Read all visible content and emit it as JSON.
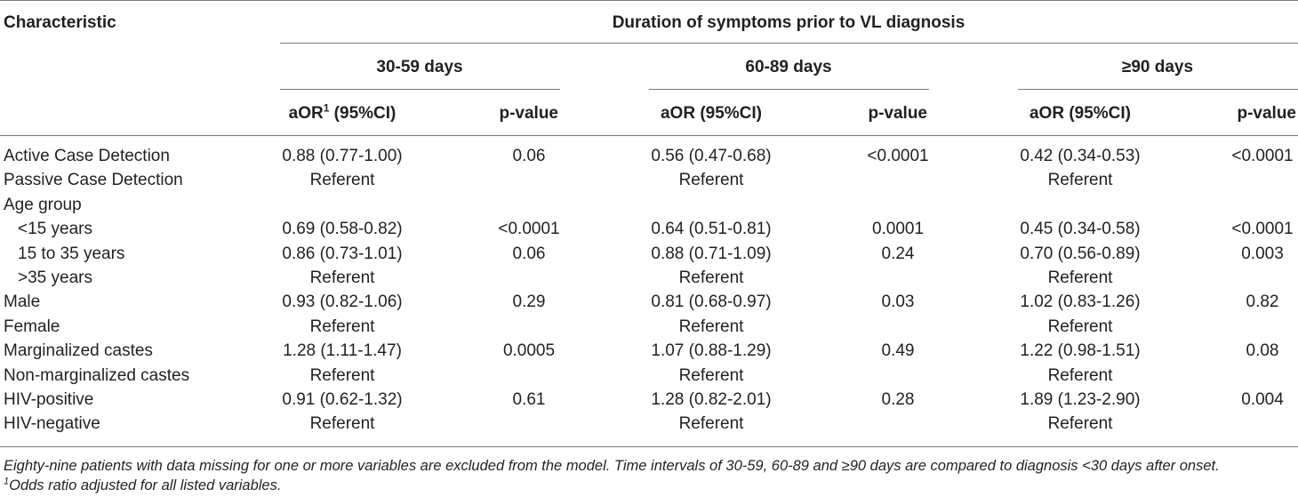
{
  "header": {
    "characteristic": "Characteristic",
    "span_title": "Duration of symptoms prior to VL diagnosis",
    "groups": [
      "30-59 days",
      "60-89 days",
      "≥90 days"
    ],
    "aor_first": "aOR",
    "aor_first_sup": "1",
    "aor_first_rest": " (95%CI)",
    "aor": "aOR (95%CI)",
    "pvalue": "p-value"
  },
  "rows": [
    {
      "label": "Active Case Detection",
      "c1": "0.88 (0.77-1.00)",
      "p1": "0.06",
      "c2": "0.56 (0.47-0.68)",
      "p2": "<0.0001",
      "c3": "0.42 (0.34-0.53)",
      "p3": "<0.0001"
    },
    {
      "label": "Passive Case Detection",
      "c1": "Referent",
      "p1": "",
      "c2": "Referent",
      "p2": "",
      "c3": "Referent",
      "p3": ""
    },
    {
      "label": "Age group",
      "c1": "",
      "p1": "",
      "c2": "",
      "p2": "",
      "c3": "",
      "p3": ""
    },
    {
      "label": "<15 years",
      "c1": "0.69 (0.58-0.82)",
      "p1": "<0.0001",
      "c2": "0.64 (0.51-0.81)",
      "p2": "0.0001",
      "c3": "0.45 (0.34-0.58)",
      "p3": "<0.0001"
    },
    {
      "label": "15 to 35 years",
      "c1": "0.86 (0.73-1.01)",
      "p1": "0.06",
      "c2": "0.88 (0.71-1.09)",
      "p2": "0.24",
      "c3": "0.70 (0.56-0.89)",
      "p3": "0.003"
    },
    {
      "label": ">35 years",
      "c1": "Referent",
      "p1": "",
      "c2": "Referent",
      "p2": "",
      "c3": "Referent",
      "p3": ""
    },
    {
      "label": "Male",
      "c1": "0.93 (0.82-1.06)",
      "p1": "0.29",
      "c2": "0.81 (0.68-0.97)",
      "p2": "0.03",
      "c3": "1.02 (0.83-1.26)",
      "p3": "0.82"
    },
    {
      "label": "Female",
      "c1": "Referent",
      "p1": "",
      "c2": "Referent",
      "p2": "",
      "c3": "Referent",
      "p3": ""
    },
    {
      "label": "Marginalized castes",
      "c1": "1.28 (1.11-1.47)",
      "p1": "0.0005",
      "c2": "1.07 (0.88-1.29)",
      "p2": "0.49",
      "c3": "1.22 (0.98-1.51)",
      "p3": "0.08"
    },
    {
      "label": "Non-marginalized castes",
      "c1": "Referent",
      "p1": "",
      "c2": "Referent",
      "p2": "",
      "c3": "Referent",
      "p3": ""
    },
    {
      "label": "HIV-positive",
      "c1": "0.91 (0.62-1.32)",
      "p1": "0.61",
      "c2": "1.28 (0.82-2.01)",
      "p2": "0.28",
      "c3": "1.89 (1.23-2.90)",
      "p3": "0.004"
    },
    {
      "label": "HIV-negative",
      "c1": "Referent",
      "p1": "",
      "c2": "Referent",
      "p2": "",
      "c3": "Referent",
      "p3": ""
    }
  ],
  "footnotes": {
    "note1": "Eighty-nine patients with data missing for one or more variables are excluded from the model. Time intervals of 30-59, 60-89 and ≥90 days are compared to diagnosis <30 days after onset.",
    "note2_sup": "1",
    "note2": "Odds ratio adjusted for all listed variables."
  }
}
